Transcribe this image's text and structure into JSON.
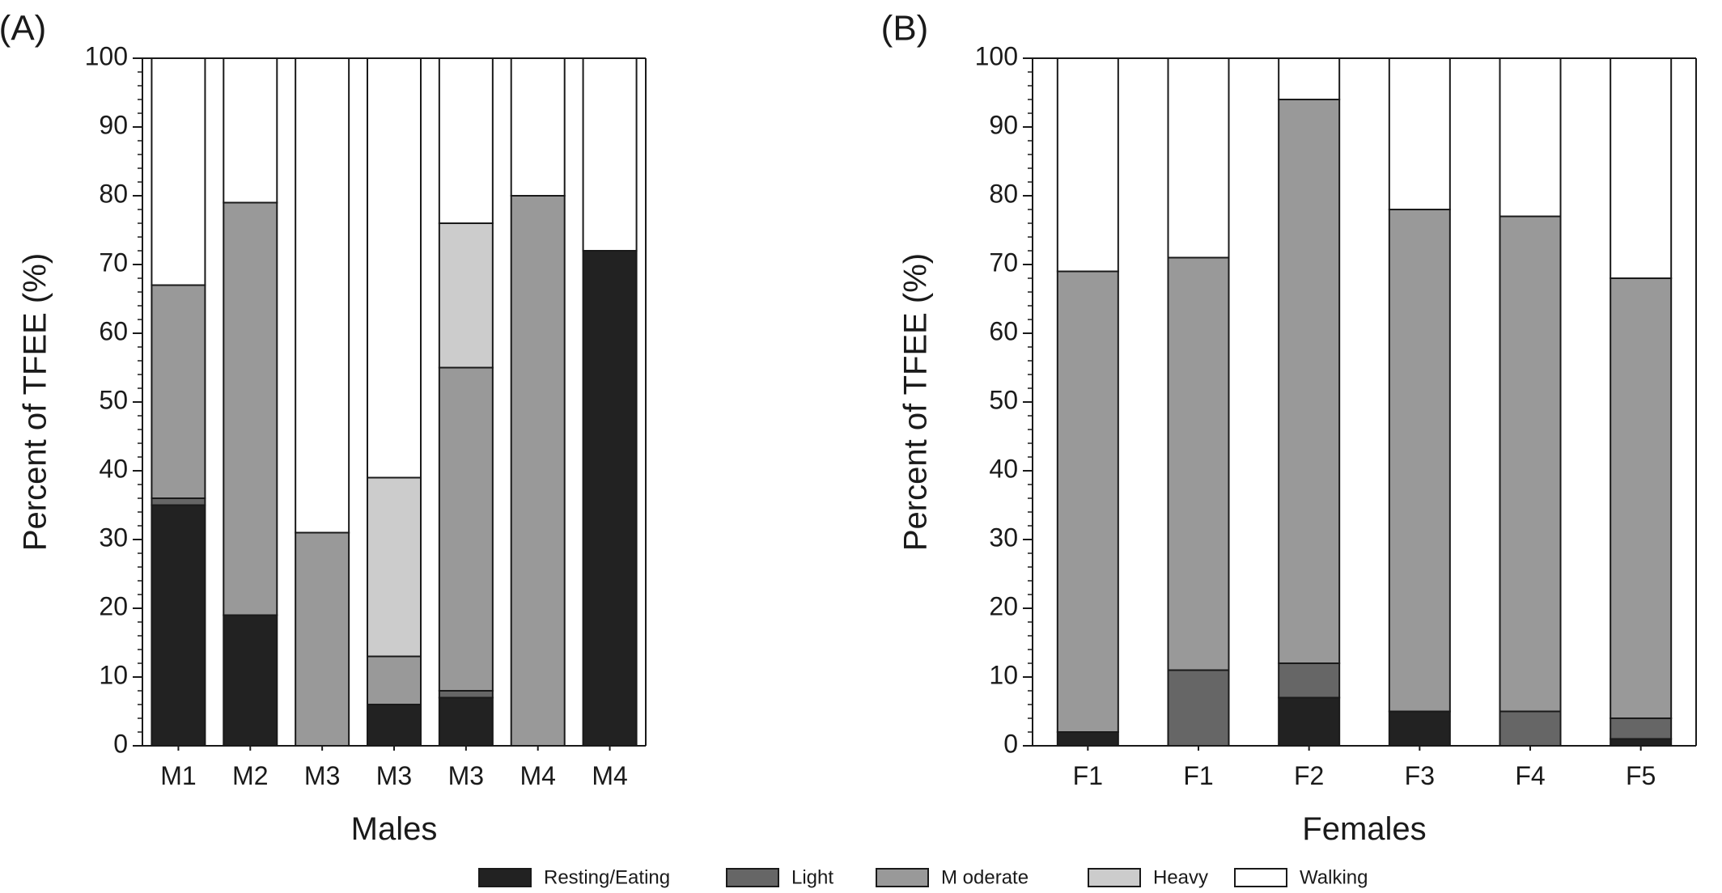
{
  "colors": {
    "resting_eating": "#222222",
    "light": "#666666",
    "moderate": "#999999",
    "heavy": "#cccccc",
    "walking": "#ffffff"
  },
  "legend": [
    {
      "key": "resting_eating",
      "label": "Resting/Eating"
    },
    {
      "key": "light",
      "label": "Light"
    },
    {
      "key": "moderate",
      "label": "M oderate"
    },
    {
      "key": "heavy",
      "label": "Heavy"
    },
    {
      "key": "walking",
      "label": "Walking"
    }
  ],
  "chart_data": [
    {
      "type": "bar",
      "stacked": true,
      "panel_label": "(A)",
      "categories": [
        "M1",
        "M2",
        "M3",
        "M3",
        "M3",
        "M4",
        "M4"
      ],
      "xlabel": "Males",
      "ylabel": "Percent of TFEE (%)",
      "ylim": [
        0,
        100
      ],
      "yticks": [
        0,
        10,
        20,
        30,
        40,
        50,
        60,
        70,
        80,
        90,
        100
      ],
      "series": [
        {
          "name": "Resting/Eating",
          "key": "resting_eating",
          "values": [
            35,
            19,
            0,
            6,
            7,
            0,
            72
          ]
        },
        {
          "name": "Light",
          "key": "light",
          "values": [
            1,
            0,
            0,
            0,
            1,
            0,
            0
          ]
        },
        {
          "name": "Moderate",
          "key": "moderate",
          "values": [
            31,
            60,
            31,
            7,
            47,
            80,
            0
          ]
        },
        {
          "name": "Heavy",
          "key": "heavy",
          "values": [
            0,
            0,
            0,
            26,
            21,
            0,
            0
          ]
        },
        {
          "name": "Walking",
          "key": "walking",
          "values": [
            33,
            21,
            69,
            61,
            24,
            20,
            28
          ]
        }
      ]
    },
    {
      "type": "bar",
      "stacked": true,
      "panel_label": "(B)",
      "categories": [
        "F1",
        "F1",
        "F2",
        "F3",
        "F4",
        "F5"
      ],
      "xlabel": "Females",
      "ylabel": "Percent of TFEE (%)",
      "ylim": [
        0,
        100
      ],
      "yticks": [
        0,
        10,
        20,
        30,
        40,
        50,
        60,
        70,
        80,
        90,
        100
      ],
      "series": [
        {
          "name": "Resting/Eating",
          "key": "resting_eating",
          "values": [
            2,
            0,
            7,
            5,
            0,
            1
          ]
        },
        {
          "name": "Light",
          "key": "light",
          "values": [
            0,
            11,
            5,
            0,
            5,
            3
          ]
        },
        {
          "name": "Moderate",
          "key": "moderate",
          "values": [
            67,
            60,
            82,
            73,
            72,
            64
          ]
        },
        {
          "name": "Heavy",
          "key": "heavy",
          "values": [
            0,
            0,
            0,
            0,
            0,
            0
          ]
        },
        {
          "name": "Walking",
          "key": "walking",
          "values": [
            31,
            29,
            6,
            22,
            23,
            32
          ]
        }
      ]
    }
  ]
}
